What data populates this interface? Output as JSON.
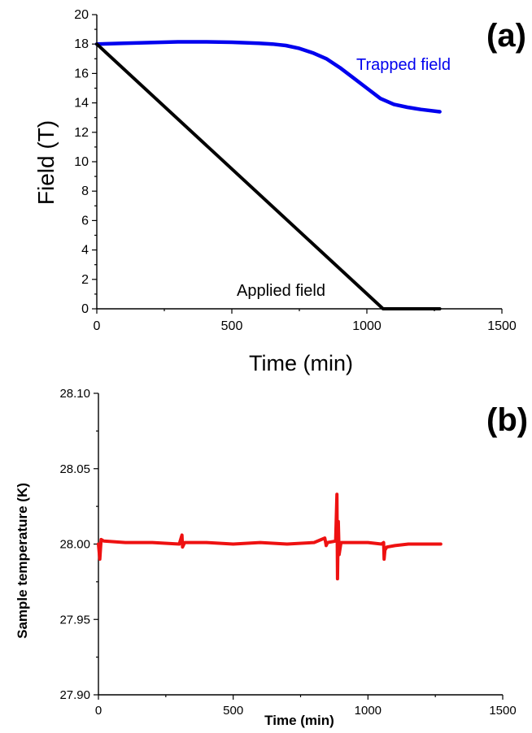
{
  "chart_data": [
    {
      "type": "line",
      "panel_label": "(a)",
      "xlabel": "Time (min)",
      "ylabel": "Field (T)",
      "xlim": [
        0,
        1500
      ],
      "ylim": [
        0,
        20
      ],
      "x_ticks": [
        0,
        500,
        1000,
        1500
      ],
      "y_ticks": [
        0,
        2,
        4,
        6,
        8,
        10,
        12,
        14,
        16,
        18,
        20
      ],
      "grid": false,
      "series": [
        {
          "name": "Trapped field",
          "color": "#0000ee",
          "x": [
            0,
            100,
            200,
            300,
            400,
            500,
            600,
            650,
            700,
            750,
            800,
            850,
            900,
            950,
            1000,
            1050,
            1100,
            1150,
            1200,
            1270
          ],
          "y": [
            18.0,
            18.05,
            18.1,
            18.15,
            18.15,
            18.12,
            18.05,
            18.0,
            17.9,
            17.7,
            17.4,
            17.0,
            16.4,
            15.7,
            15.0,
            14.3,
            13.9,
            13.7,
            13.55,
            13.4
          ]
        },
        {
          "name": "Applied field",
          "color": "#000000",
          "x": [
            0,
            1060,
            1270
          ],
          "y": [
            18.0,
            0.0,
            0.0
          ]
        }
      ]
    },
    {
      "type": "line",
      "panel_label": "(b)",
      "xlabel": "Time (min)",
      "ylabel": "Sample temperature (K)",
      "xlim": [
        0,
        1500
      ],
      "ylim": [
        27.9,
        28.1
      ],
      "x_ticks": [
        0,
        500,
        1000,
        1500
      ],
      "y_ticks": [
        27.9,
        27.95,
        28.0,
        28.05,
        28.1
      ],
      "grid": false,
      "series": [
        {
          "name": "",
          "color": "#ee1111",
          "x": [
            0,
            5,
            10,
            20,
            100,
            200,
            300,
            310,
            312,
            320,
            400,
            500,
            600,
            700,
            800,
            840,
            845,
            850,
            880,
            885,
            887,
            890,
            893,
            900,
            950,
            1000,
            1050,
            1058,
            1060,
            1063,
            1070,
            1100,
            1150,
            1200,
            1270
          ],
          "y": [
            28.0,
            27.99,
            28.003,
            28.002,
            28.001,
            28.001,
            28.0,
            28.006,
            27.998,
            28.001,
            28.001,
            28.0,
            28.001,
            28.0,
            28.001,
            28.004,
            27.999,
            28.001,
            28.002,
            28.033,
            27.977,
            28.015,
            27.993,
            28.001,
            28.001,
            28.001,
            28.0,
            28.001,
            27.99,
            27.996,
            27.998,
            27.999,
            28.0,
            28.0,
            28.0
          ]
        }
      ]
    }
  ]
}
